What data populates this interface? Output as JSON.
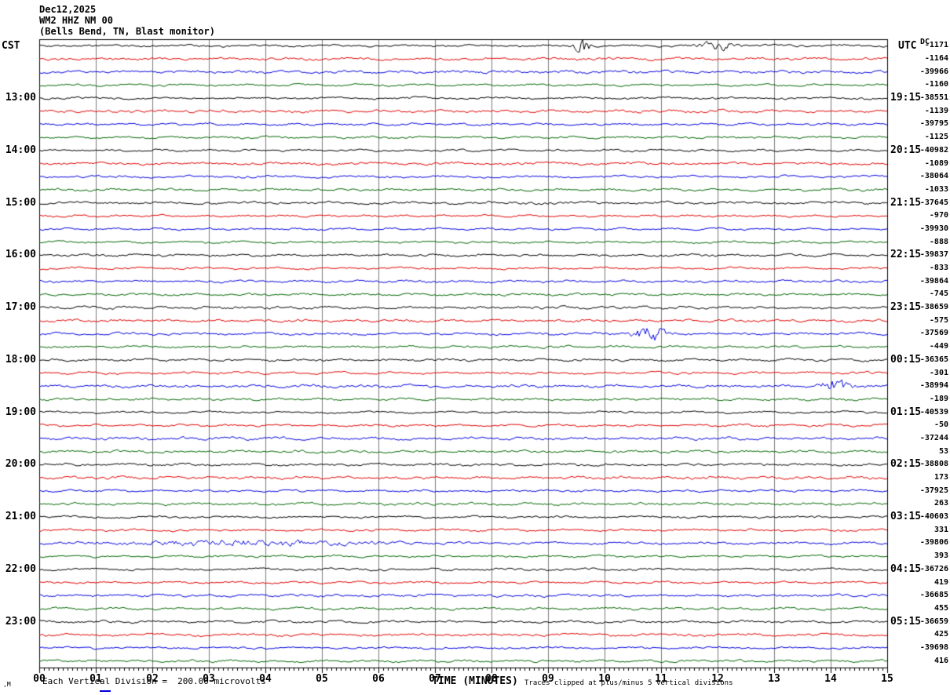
{
  "header": {
    "date": "Dec12,2025",
    "station": "WM2 HHZ NM 00",
    "description": "(Bells Bend, TN, Blast monitor)"
  },
  "axes": {
    "left_title": "CST",
    "right_title": "UTC",
    "x_title": "TIME (MINUTES)",
    "dc_label": "DC",
    "x_ticks": [
      "00",
      "01",
      "02",
      "03",
      "04",
      "05",
      "06",
      "07",
      "08",
      "09",
      "10",
      "11",
      "12",
      "13",
      "14",
      "15"
    ]
  },
  "footer": {
    "corner_mark": ",M",
    "scale_note": "Each Vertical Division =  200.00 microvolts",
    "clip_note": "Traces clipped at plus/minus 5 vertical divisions"
  },
  "chart_data": {
    "type": "line",
    "title": "Helicorder seismogram, WM2 HHZ NM 00 (Bells Bend, TN, Blast monitor), Dec12,2025",
    "xlabel": "TIME (MINUTES)",
    "x_range_minutes": [
      0,
      15
    ],
    "minutes_per_row": 15,
    "grid": true,
    "grid_color": "#7a7a7a",
    "border_color": "#000000",
    "trace_colors": {
      "black": "#000000",
      "red": "#e00000",
      "blue": "#0000dd",
      "green": "#006600"
    },
    "rows": [
      {
        "color": "black",
        "left": null,
        "right_time": null,
        "value": "-1171"
      },
      {
        "color": "red",
        "left": null,
        "right_time": null,
        "value": "-1164"
      },
      {
        "color": "blue",
        "left": null,
        "right_time": null,
        "value": "-39966"
      },
      {
        "color": "green",
        "left": null,
        "right_time": null,
        "value": "-1160"
      },
      {
        "color": "black",
        "left": "13:00",
        "right_time": "19:15",
        "value": "-38551"
      },
      {
        "color": "red",
        "left": null,
        "right_time": null,
        "value": "-1139"
      },
      {
        "color": "blue",
        "left": null,
        "right_time": null,
        "value": "-39795"
      },
      {
        "color": "green",
        "left": null,
        "right_time": null,
        "value": "-1125"
      },
      {
        "color": "black",
        "left": "14:00",
        "right_time": "20:15",
        "value": "-40982"
      },
      {
        "color": "red",
        "left": null,
        "right_time": null,
        "value": "-1089"
      },
      {
        "color": "blue",
        "left": null,
        "right_time": null,
        "value": "-38064"
      },
      {
        "color": "green",
        "left": null,
        "right_time": null,
        "value": "-1033"
      },
      {
        "color": "black",
        "left": "15:00",
        "right_time": "21:15",
        "value": "-37645"
      },
      {
        "color": "red",
        "left": null,
        "right_time": null,
        "value": "-970"
      },
      {
        "color": "blue",
        "left": null,
        "right_time": null,
        "value": "-39930"
      },
      {
        "color": "green",
        "left": null,
        "right_time": null,
        "value": "-888"
      },
      {
        "color": "black",
        "left": "16:00",
        "right_time": "22:15",
        "value": "-39837"
      },
      {
        "color": "red",
        "left": null,
        "right_time": null,
        "value": "-833"
      },
      {
        "color": "blue",
        "left": null,
        "right_time": null,
        "value": "-39864"
      },
      {
        "color": "green",
        "left": null,
        "right_time": null,
        "value": "-745"
      },
      {
        "color": "black",
        "left": "17:00",
        "right_time": "23:15",
        "value": "-38659"
      },
      {
        "color": "red",
        "left": null,
        "right_time": null,
        "value": "-575"
      },
      {
        "color": "blue",
        "left": null,
        "right_time": null,
        "value": "-37569"
      },
      {
        "color": "green",
        "left": null,
        "right_time": null,
        "value": "-449"
      },
      {
        "color": "black",
        "left": "18:00",
        "right_time": "00:15",
        "value": "-36365"
      },
      {
        "color": "red",
        "left": null,
        "right_time": null,
        "value": "-301"
      },
      {
        "color": "blue",
        "left": null,
        "right_time": null,
        "value": "-38994"
      },
      {
        "color": "green",
        "left": null,
        "right_time": null,
        "value": "-189"
      },
      {
        "color": "black",
        "left": "19:00",
        "right_time": "01:15",
        "value": "-40539"
      },
      {
        "color": "red",
        "left": null,
        "right_time": null,
        "value": "-50"
      },
      {
        "color": "blue",
        "left": null,
        "right_time": null,
        "value": "-37244"
      },
      {
        "color": "green",
        "left": null,
        "right_time": null,
        "value": "53"
      },
      {
        "color": "black",
        "left": "20:00",
        "right_time": "02:15",
        "value": "-38808"
      },
      {
        "color": "red",
        "left": null,
        "right_time": null,
        "value": "173"
      },
      {
        "color": "blue",
        "left": null,
        "right_time": null,
        "value": "-37925"
      },
      {
        "color": "green",
        "left": null,
        "right_time": null,
        "value": "263"
      },
      {
        "color": "black",
        "left": "21:00",
        "right_time": "03:15",
        "value": "-40603"
      },
      {
        "color": "red",
        "left": null,
        "right_time": null,
        "value": "331"
      },
      {
        "color": "blue",
        "left": null,
        "right_time": null,
        "value": "-39806"
      },
      {
        "color": "green",
        "left": null,
        "right_time": null,
        "value": "393"
      },
      {
        "color": "black",
        "left": "22:00",
        "right_time": "04:15",
        "value": "-36726"
      },
      {
        "color": "red",
        "left": null,
        "right_time": null,
        "value": "419"
      },
      {
        "color": "blue",
        "left": null,
        "right_time": null,
        "value": "-36685"
      },
      {
        "color": "green",
        "left": null,
        "right_time": null,
        "value": "455"
      },
      {
        "color": "black",
        "left": "23:00",
        "right_time": "05:15",
        "value": "-36659"
      },
      {
        "color": "red",
        "left": null,
        "right_time": null,
        "value": "425"
      },
      {
        "color": "blue",
        "left": null,
        "right_time": null,
        "value": "-39698"
      },
      {
        "color": "green",
        "left": null,
        "right_time": null,
        "value": "416"
      }
    ],
    "events": [
      {
        "row": 0,
        "minute": 9.6,
        "width": 0.12,
        "amp": 8.0
      },
      {
        "row": 0,
        "minute": 12.05,
        "width": 0.3,
        "amp": 4.5
      },
      {
        "row": 22,
        "minute": 10.8,
        "width": 0.25,
        "amp": 7.0
      },
      {
        "row": 26,
        "minute": 14.1,
        "width": 0.25,
        "amp": 5.5
      },
      {
        "row": 38,
        "minute": 3.5,
        "width": 2.0,
        "amp": 2.3
      }
    ]
  }
}
